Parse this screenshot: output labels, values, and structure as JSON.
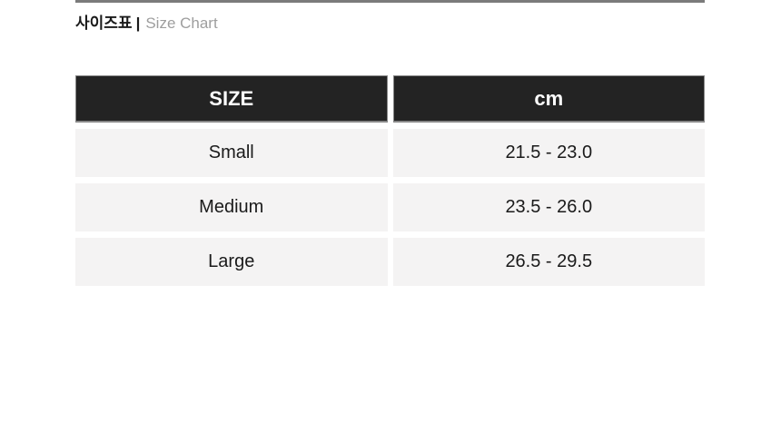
{
  "title": {
    "ko": "사이즈표",
    "separator": "|",
    "en": "Size Chart"
  },
  "table": {
    "columns": [
      {
        "label": "SIZE"
      },
      {
        "label": "cm"
      }
    ],
    "rows": [
      {
        "size": "Small",
        "cm": "21.5 - 23.0"
      },
      {
        "size": "Medium",
        "cm": "23.5 - 26.0"
      },
      {
        "size": "Large",
        "cm": "26.5 - 29.5"
      }
    ]
  },
  "colors": {
    "header_bg": "#232323",
    "header_text": "#ffffff",
    "header_border": "#888888",
    "row_bg": "#f4f3f3",
    "cell_text": "#1a1a1a",
    "title_ko_color": "#1a1a1a",
    "title_en_color": "#9e9e9e",
    "rule_color": "#7b7b7b",
    "page_bg": "#ffffff"
  }
}
